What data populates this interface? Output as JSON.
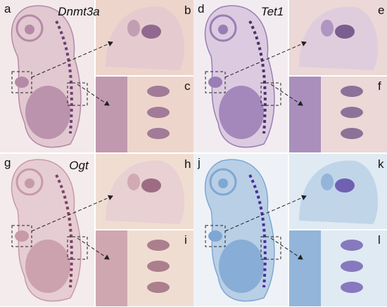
{
  "figures": [
    {
      "gene": "Dnmt3a",
      "labels": [
        "a",
        "b",
        "c"
      ]
    },
    {
      "gene": "Tet1",
      "labels": [
        "d",
        "e",
        "f"
      ]
    },
    {
      "gene": "Ogt",
      "labels": [
        "g",
        "h",
        "i"
      ]
    },
    {
      "labels": [
        "j",
        "k",
        "l"
      ]
    }
  ]
}
